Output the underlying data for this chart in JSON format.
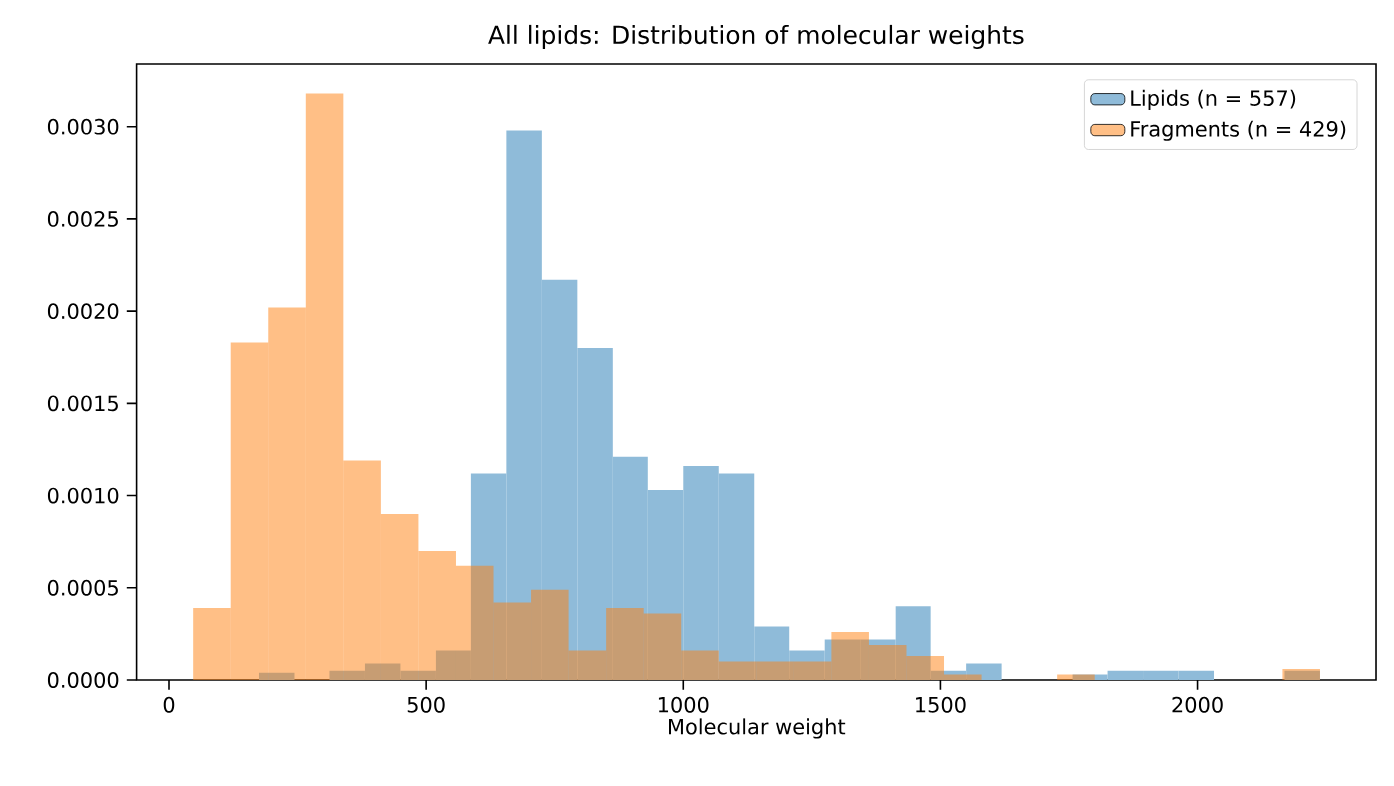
{
  "chart_data": {
    "type": "histogram",
    "title": "All lipids: Distribution of molecular weights",
    "xlabel": "Molecular weight",
    "xlim": [
      -63,
      2347
    ],
    "ylim": [
      0,
      0.00334
    ],
    "xticks": [
      {
        "value": 0,
        "label": "0"
      },
      {
        "value": 500,
        "label": "500"
      },
      {
        "value": 1000,
        "label": "1000"
      },
      {
        "value": 1500,
        "label": "1500"
      },
      {
        "value": 2000,
        "label": "2000"
      }
    ],
    "yticks": [
      {
        "value": 0,
        "label": "0.0000"
      },
      {
        "value": 0.0005,
        "label": "0.0005"
      },
      {
        "value": 0.001,
        "label": "0.0010"
      },
      {
        "value": 0.0015,
        "label": "0.0015"
      },
      {
        "value": 0.002,
        "label": "0.0020"
      },
      {
        "value": 0.0025,
        "label": "0.0025"
      },
      {
        "value": 0.003,
        "label": "0.0030"
      }
    ],
    "legend": "top right",
    "bins": [
      175,
      244,
      312,
      381,
      450,
      519,
      587,
      656,
      725,
      794,
      863,
      931,
      1000,
      1069,
      1138,
      1206,
      1275,
      1344,
      1413,
      1481,
      1550,
      1619,
      1757,
      1825,
      1894,
      1963,
      2032,
      2169,
      2238
    ],
    "series": [
      {
        "name": "Lipids (n = 557)",
        "color": "#8fbbd9",
        "values": [
          4e-05,
          0,
          5e-05,
          9e-05,
          5e-05,
          0.00016,
          0.00112,
          0.00298,
          0.00217,
          0.0018,
          0.00121,
          0.00103,
          0.00116,
          0.00112,
          0.00029,
          0.00016,
          0.00022,
          0.00022,
          0.0004,
          5e-05,
          9e-05,
          0,
          3e-05,
          5e-05,
          5e-05,
          5e-05,
          0,
          5e-05
        ]
      },
      {
        "name": "Fragments (n = 429)",
        "color": "#ffbf86",
        "bins": [
          47,
          120,
          193,
          266,
          339,
          412,
          485,
          558,
          631,
          704,
          777,
          850,
          923,
          996,
          1069,
          1142,
          1215,
          1288,
          1361,
          1434,
          1507,
          1580,
          1727,
          1800,
          2165,
          2238
        ],
        "values": [
          0.00039,
          0.00183,
          0.00202,
          0.00318,
          0.00119,
          0.0009,
          0.0007,
          0.00062,
          0.00042,
          0.00049,
          0.00016,
          0.00039,
          0.00036,
          0.00016,
          0.0001,
          0.0001,
          0.0001,
          0.00026,
          0.00019,
          0.00013,
          3e-05,
          0,
          3e-05,
          0,
          6e-05
        ]
      }
    ]
  }
}
